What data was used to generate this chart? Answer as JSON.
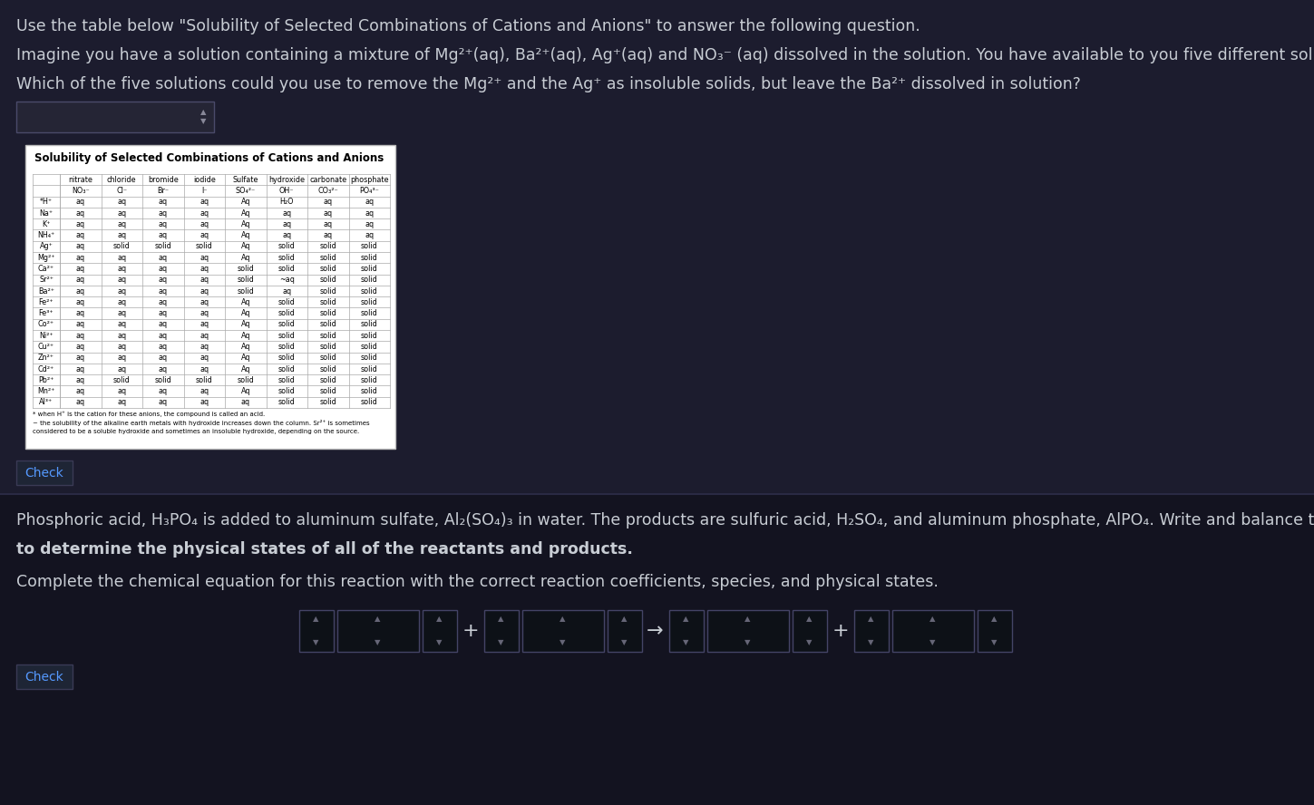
{
  "bg_top": "#1c1c2e",
  "bg_bottom": "#13131f",
  "text_color": "#c8cdd4",
  "table_title": "Solubility of Selected Combinations of Cations and Anions",
  "line1": "Use the table below \"Solubility of Selected Combinations of Cations and Anions\" to answer the following question.",
  "line2": "Imagine you have a solution containing a mixture of Mg²⁺(aq), Ba²⁺(aq), Ag⁺(aq) and NO₃⁻ (aq) dissolved in the solution. You have available to you five different solutions containing certain ions.",
  "line3": "Which of the five solutions could you use to remove the Mg²⁺ and the Ag⁺ as insoluble solids, but leave the Ba²⁺ dissolved in solution?",
  "line4": "Phosphoric acid, H₃PO₄ is added to aluminum sulfate, Al₂(SO₄)₃ in water. The products are sulfuric acid, H₂SO₄, and aluminum phosphate, AlPO₄. Write and balance this reaction, and use the table of solubility below",
  "line5": "to determine the physical states of all of the reactants and products.",
  "line6": "Complete the chemical equation for this reaction with the correct reaction coefficients, species, and physical states.",
  "col_header_names": [
    "nitrate",
    "chloride",
    "bromide",
    "iodide",
    "Sulfate",
    "hydroxide",
    "carbonate",
    "phosphate"
  ],
  "col_header_formulas": [
    "NO₃⁻",
    "Cl⁻",
    "Br⁻",
    "I⁻",
    "SO₄²⁻",
    "OH⁻",
    "CO₃²⁻",
    "PO₄³⁻"
  ],
  "row_labels": [
    "*H⁺",
    "Na⁺",
    "K⁺",
    "NH₄⁺",
    "Ag⁺",
    "Mg²⁺",
    "Ca²⁺",
    "Sr²⁺",
    "Ba²⁺",
    "Fe²⁺",
    "Fe³⁺",
    "Co²⁺",
    "Ni²⁺",
    "Cu²⁺",
    "Zn²⁺",
    "Cd²⁺",
    "Pb²⁺",
    "Mn²⁺",
    "Al³⁺"
  ],
  "table_data": [
    [
      "aq",
      "aq",
      "aq",
      "aq",
      "Aq",
      "H₂O",
      "aq",
      "aq"
    ],
    [
      "aq",
      "aq",
      "aq",
      "aq",
      "Aq",
      "aq",
      "aq",
      "aq"
    ],
    [
      "aq",
      "aq",
      "aq",
      "aq",
      "Aq",
      "aq",
      "aq",
      "aq"
    ],
    [
      "aq",
      "aq",
      "aq",
      "aq",
      "Aq",
      "aq",
      "aq",
      "aq"
    ],
    [
      "aq",
      "solid",
      "solid",
      "solid",
      "Aq",
      "solid",
      "solid",
      "solid"
    ],
    [
      "aq",
      "aq",
      "aq",
      "aq",
      "Aq",
      "solid",
      "solid",
      "solid"
    ],
    [
      "aq",
      "aq",
      "aq",
      "aq",
      "solid",
      "solid",
      "solid",
      "solid"
    ],
    [
      "aq",
      "aq",
      "aq",
      "aq",
      "solid",
      "~aq",
      "solid",
      "solid"
    ],
    [
      "aq",
      "aq",
      "aq",
      "aq",
      "solid",
      "aq",
      "solid",
      "solid"
    ],
    [
      "aq",
      "aq",
      "aq",
      "aq",
      "Aq",
      "solid",
      "solid",
      "solid"
    ],
    [
      "aq",
      "aq",
      "aq",
      "aq",
      "Aq",
      "solid",
      "solid",
      "solid"
    ],
    [
      "aq",
      "aq",
      "aq",
      "aq",
      "Aq",
      "solid",
      "solid",
      "solid"
    ],
    [
      "aq",
      "aq",
      "aq",
      "aq",
      "Aq",
      "solid",
      "solid",
      "solid"
    ],
    [
      "aq",
      "aq",
      "aq",
      "aq",
      "Aq",
      "solid",
      "solid",
      "solid"
    ],
    [
      "aq",
      "aq",
      "aq",
      "aq",
      "Aq",
      "solid",
      "solid",
      "solid"
    ],
    [
      "aq",
      "aq",
      "aq",
      "aq",
      "Aq",
      "solid",
      "solid",
      "solid"
    ],
    [
      "aq",
      "solid",
      "solid",
      "solid",
      "solid",
      "solid",
      "solid",
      "solid"
    ],
    [
      "aq",
      "aq",
      "aq",
      "aq",
      "Aq",
      "solid",
      "solid",
      "solid"
    ],
    [
      "aq",
      "aq",
      "aq",
      "aq",
      "aq",
      "solid",
      "solid",
      "solid"
    ]
  ],
  "footnote1": "* when H⁺ is the cation for these anions, the compound is called an acid.",
  "footnote2": "~ the solubility of the alkaline earth metals with hydroxide increases down the column. Sr²⁺ is sometimes",
  "footnote3": "considered to be a soluble hydroxide and sometimes an insoluble hydroxide, depending on the source."
}
